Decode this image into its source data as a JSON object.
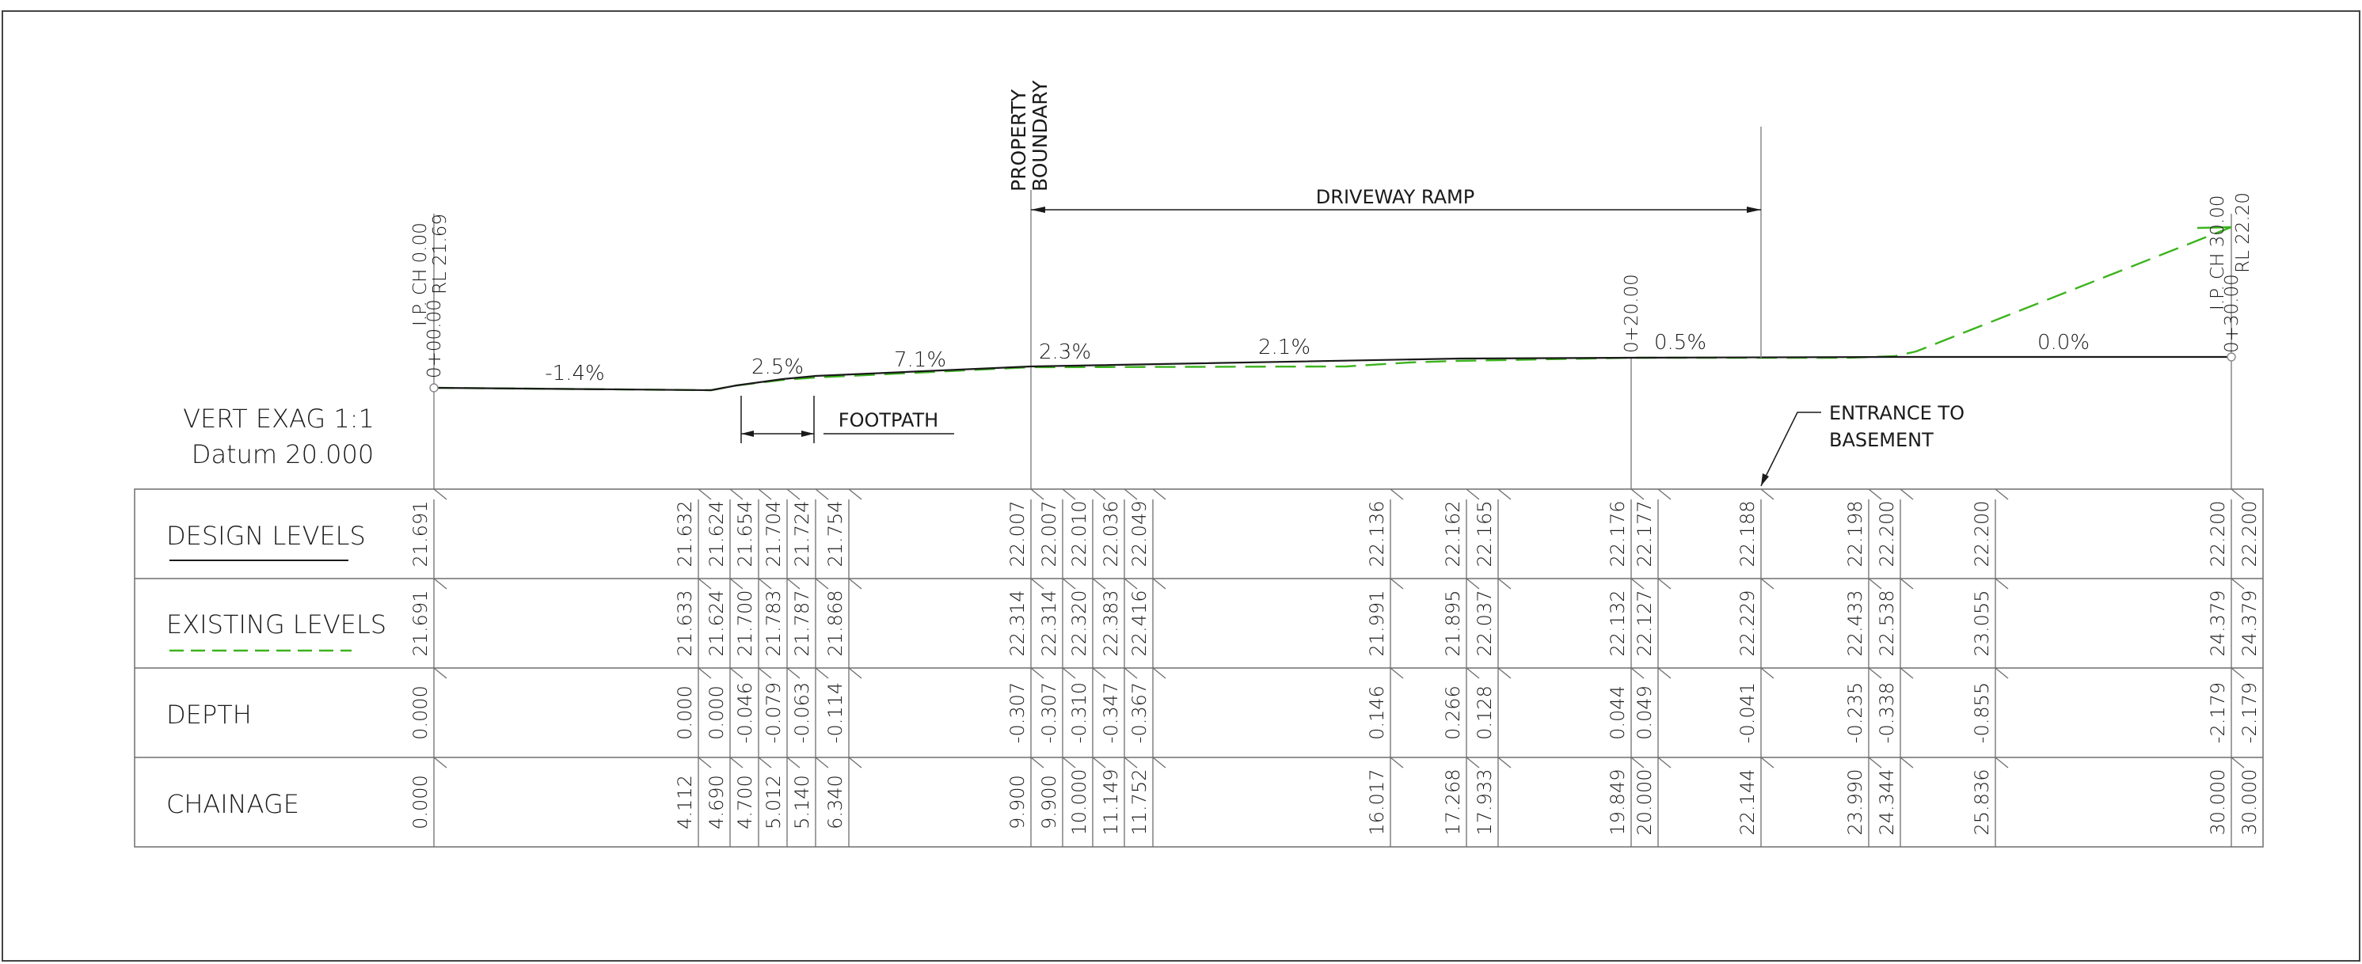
{
  "header": {
    "property_boundary": [
      "PROPERTY",
      "BOUNDARY"
    ],
    "driveway_ramp": "DRIVEWAY RAMP",
    "footpath": "FOOTPATH",
    "entrance": [
      "ENTRANCE TO",
      "BASEMENT"
    ],
    "vert_exag": "VERT EXAG  1:1",
    "datum": "Datum 20.000"
  },
  "ip_start": {
    "ch": "I.P. CH 0.00",
    "rl": "RL 21.69",
    "station": "0+00.00"
  },
  "ip_end": {
    "ch": "I.P. CH 30.00",
    "rl": "RL 22.20",
    "station": "0+30.00"
  },
  "mid_station": "0+20.00",
  "grades": [
    "-1.4%",
    "2.5%",
    "7.1%",
    "2.3%",
    "2.1%",
    "0.5%",
    "0.0%"
  ],
  "rows": {
    "design": "DESIGN LEVELS",
    "existing": "EXISTING LEVELS",
    "depth": "DEPTH",
    "chainage": "CHAINAGE"
  },
  "columns": [
    {
      "design": "21.691",
      "existing": "21.691",
      "depth": "0.000",
      "chainage": "0.000"
    },
    {
      "design": "21.632",
      "existing": "21.633",
      "depth": "0.000",
      "chainage": "4.112"
    },
    {
      "design": "21.624",
      "existing": "21.624",
      "depth": "0.000",
      "chainage": "4.690"
    },
    {
      "design": "21.654",
      "existing": "21.700",
      "depth": "-0.046",
      "chainage": "4.700"
    },
    {
      "design": "21.704",
      "existing": "21.783",
      "depth": "-0.079",
      "chainage": "5.012"
    },
    {
      "design": "21.724",
      "existing": "21.787",
      "depth": "-0.063",
      "chainage": "5.140"
    },
    {
      "design": "21.754",
      "existing": "21.868",
      "depth": "-0.114",
      "chainage": "6.340"
    },
    {
      "design": "22.007",
      "existing": "22.314",
      "depth": "-0.307",
      "chainage": "9.900"
    },
    {
      "design": "22.007",
      "existing": "22.314",
      "depth": "-0.307",
      "chainage": "9.900"
    },
    {
      "design": "22.010",
      "existing": "22.320",
      "depth": "-0.310",
      "chainage": "10.000"
    },
    {
      "design": "22.036",
      "existing": "22.383",
      "depth": "-0.347",
      "chainage": "11.149"
    },
    {
      "design": "22.049",
      "existing": "22.416",
      "depth": "-0.367",
      "chainage": "11.752"
    },
    {
      "design": "22.136",
      "existing": "21.991",
      "depth": "0.146",
      "chainage": "16.017"
    },
    {
      "design": "22.162",
      "existing": "21.895",
      "depth": "0.266",
      "chainage": "17.268"
    },
    {
      "design": "22.165",
      "existing": "22.037",
      "depth": "0.128",
      "chainage": "17.933"
    },
    {
      "design": "22.176",
      "existing": "22.132",
      "depth": "0.044",
      "chainage": "19.849"
    },
    {
      "design": "22.177",
      "existing": "22.127",
      "depth": "0.049",
      "chainage": "20.000"
    },
    {
      "design": "22.188",
      "existing": "22.229",
      "depth": "-0.041",
      "chainage": "22.144"
    },
    {
      "design": "22.198",
      "existing": "22.433",
      "depth": "-0.235",
      "chainage": "23.990"
    },
    {
      "design": "22.200",
      "existing": "22.538",
      "depth": "-0.338",
      "chainage": "24.344"
    },
    {
      "design": "22.200",
      "existing": "23.055",
      "depth": "-0.855",
      "chainage": "25.836"
    },
    {
      "design": "22.200",
      "existing": "24.379",
      "depth": "-2.179",
      "chainage": "30.000"
    },
    {
      "design": "22.200",
      "existing": "24.379",
      "depth": "-2.179",
      "chainage": "30.000"
    }
  ],
  "colors": {
    "design_line": "#1a1a1a",
    "existing_line": "#3cb31e",
    "frame": "#6e6e6e"
  }
}
